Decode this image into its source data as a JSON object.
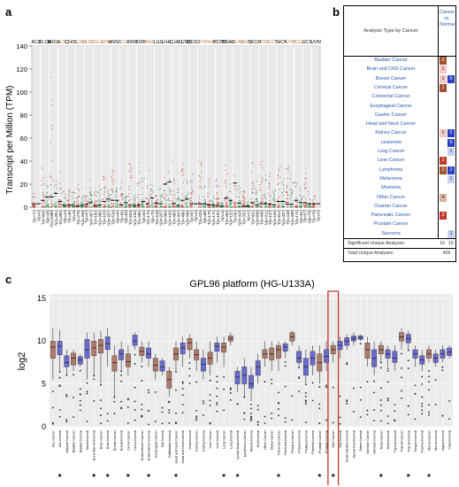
{
  "panel_labels": {
    "a": "a",
    "b": "b",
    "c": "c"
  },
  "panel_a": {
    "ylabel": "Transcript per Million (TPM)",
    "yticks": [
      "0",
      "20",
      "40",
      "60",
      "80",
      "100",
      "120",
      "140"
    ],
    "cancers": [
      "ACC",
      "BLCA",
      "BRCA",
      "CESC",
      "CHOL",
      "COAD",
      "DLBC",
      "ESCA",
      "GBM",
      "HNSC",
      "KICH",
      "KIRC",
      "KIRP",
      "LAML",
      "LGG",
      "LIHC",
      "LUAD",
      "LUSC",
      "MESO",
      "OV",
      "PAAD",
      "PCPG",
      "PRAD",
      "READ",
      "SARC",
      "SKCM",
      "STAD",
      "TGCT",
      "THCA",
      "THYM",
      "UCEC",
      "UCS",
      "UVM"
    ],
    "cancer_label_colors": [
      "#000",
      "#000",
      "#000",
      "#c08a5a",
      "#000",
      "#c08a5a",
      "#c08a5a",
      "#c08a5a",
      "#c08a5a",
      "#000",
      "#c08a5a",
      "#000",
      "#000",
      "#c08a5a",
      "#000",
      "#000",
      "#000",
      "#000",
      "#000",
      "#c08a5a",
      "#c08a5a",
      "#000",
      "#000",
      "#c08a5a",
      "#c08a5a",
      "#000",
      "#c08a5a",
      "#c08a5a",
      "#000",
      "#c08a5a",
      "#c08a5a",
      "#000",
      "#000"
    ],
    "xlabels": [
      "T(n=77)",
      "N(n=0)",
      "T(n=404)",
      "N(n=28)",
      "T(n=1085)",
      "N(n=291)",
      "T(n=306)",
      "N(n=13)",
      "T(n=36)",
      "N(n=9)",
      "T(n=275)",
      "N(n=349)",
      "T(n=47)",
      "N(n=337)",
      "T(n=182)",
      "N(n=286)",
      "T(n=163)",
      "N(n=207)",
      "T(n=519)",
      "N(n=44)",
      "T(n=66)",
      "N(n=53)",
      "T(n=523)",
      "N(n=100)",
      "T(n=286)",
      "N(n=60)",
      "T(n=173)",
      "N(n=70)",
      "T(n=518)",
      "N(n=207)",
      "T(n=369)",
      "N(n=160)",
      "T(n=483)",
      "N(n=347)",
      "T(n=486)",
      "N(n=338)",
      "T(n=87)",
      "N(n=0)",
      "T(n=426)",
      "N(n=88)",
      "T(n=179)",
      "N(n=171)",
      "T(n=182)",
      "N(n=3)",
      "T(n=492)",
      "N(n=152)",
      "T(n=92)",
      "N(n=318)",
      "T(n=262)",
      "N(n=2)",
      "T(n=461)",
      "N(n=558)",
      "T(n=408)",
      "N(n=211)",
      "T(n=137)",
      "N(n=165)",
      "T(n=512)",
      "N(n=337)",
      "T(n=118)",
      "N(n=339)",
      "T(n=174)",
      "N(n=91)",
      "T(n=57)",
      "N(n=78)",
      "T(n=79)",
      "N(n=0)"
    ],
    "ylim": [
      0,
      140
    ],
    "medians": [
      2.5,
      3.0,
      6.0,
      9.0,
      9.0,
      12.0,
      5.0,
      1.5,
      2.0,
      1.5,
      1.0,
      1.5,
      2.5,
      4.0,
      1.5,
      2.0,
      5.0,
      7.0,
      6.0,
      6.0,
      2.0,
      4.0,
      2.0,
      1.5,
      2.0,
      5.0,
      3.0,
      8.0,
      3.5,
      3.0,
      20.0,
      22.0,
      3.0,
      1.5,
      6.0,
      7.0,
      3.0,
      3.0,
      3.0,
      3.0,
      2.0,
      2.0,
      1.5,
      1.0,
      8.0,
      6.0,
      21.0,
      3.5,
      1.0,
      1.0,
      4.0,
      2.0,
      3.0,
      3.0,
      2.5,
      2.0,
      5.0,
      5.0,
      2.5,
      2.5,
      6.0,
      4.0,
      4.0,
      3.0,
      3.0,
      3.0
    ],
    "maxes": [
      12,
      0,
      38,
      20,
      118,
      30,
      35,
      15,
      16,
      14,
      20,
      12,
      22,
      25,
      14,
      20,
      30,
      16,
      35,
      18,
      28,
      10,
      40,
      12,
      48,
      30,
      38,
      20,
      10,
      18,
      30,
      32,
      45,
      18,
      38,
      26,
      30,
      0,
      40,
      20,
      28,
      15,
      25,
      5,
      40,
      22,
      38,
      20,
      15,
      5,
      40,
      24,
      42,
      30,
      30,
      15,
      36,
      26,
      36,
      30,
      22,
      18,
      30,
      14,
      10,
      0
    ],
    "tumor_color": "#c0392b",
    "normal_color": "#2e8b57"
  },
  "panel_b": {
    "header_left": "Analysis Type by Cancer",
    "header_right": [
      "Cancer",
      "vs.",
      "Normal"
    ],
    "rows": [
      {
        "name": "Bladder Cancer",
        "up": "2",
        "down": ""
      },
      {
        "name": "Brain and CNS Cancer",
        "up": "1",
        "down": ""
      },
      {
        "name": "Breast Cancer",
        "up": "1",
        "down": "5"
      },
      {
        "name": "Cervical Cancer",
        "up": "1",
        "down": ""
      },
      {
        "name": "Colorectal Cancer",
        "up": "",
        "down": ""
      },
      {
        "name": "Esophageal Cancer",
        "up": "",
        "down": ""
      },
      {
        "name": "Gastric Cancer",
        "up": "",
        "down": ""
      },
      {
        "name": "Head and Neck Cancer",
        "up": "",
        "down": ""
      },
      {
        "name": "Kidney Cancer",
        "up": "1",
        "down": "2"
      },
      {
        "name": "Leukemia",
        "up": "",
        "down": "5"
      },
      {
        "name": "Lung Cancer",
        "up": "",
        "down": "1"
      },
      {
        "name": "Liver Cancer",
        "up": "2",
        "down": ""
      },
      {
        "name": "Lymphoma",
        "up": "2",
        "down": "2"
      },
      {
        "name": "Melanoma",
        "up": "",
        "down": "1"
      },
      {
        "name": "Myeloma",
        "up": "",
        "down": ""
      },
      {
        "name": "Other Cancer",
        "up": "4",
        "down": ""
      },
      {
        "name": "Ovarian Cancer",
        "up": "",
        "down": ""
      },
      {
        "name": "Pancreatic Cancer",
        "up": "3",
        "down": ""
      },
      {
        "name": "Prostate Cancer",
        "up": "",
        "down": ""
      },
      {
        "name": "Sarcoma",
        "up": "",
        "down": "1"
      }
    ],
    "up_colors": {
      "1": "#f4c7c3",
      "2": "#a0522d",
      "3": "#c0392b",
      "4": "#d8b4a0"
    },
    "down_colors": {
      "1": "#c6d3f0",
      "2": "#2a3fc0",
      "5": "#2a3fc0"
    },
    "special_up_colors": {
      "Liver Cancer": "#c0392b",
      "Cervical Cancer": "#a0522d"
    },
    "significant_label": "Significant Unique Analyses",
    "significant_up": "16",
    "significant_down": "15",
    "total_label": "Total Unique Analyses",
    "total": "405"
  },
  "panel_c": {
    "title": "GPL96 platform (HG-U133A)",
    "ylabel": "log2",
    "yticks": [
      "0",
      "5",
      "10",
      "15"
    ],
    "ylim": [
      0,
      15.5
    ],
    "groups": [
      {
        "label": "ALL Cancer",
        "median": 9.3,
        "q1": 8.0,
        "q3": 10.0,
        "lo": 5.5,
        "hi": 11.5,
        "color": "#b07a6a"
      },
      {
        "label": "ALL Normal",
        "median": 9.4,
        "q1": 8.4,
        "q3": 10.0,
        "lo": 6.5,
        "hi": 11.3,
        "color": "#6a6ad0"
      },
      {
        "label": "Adipose Normal",
        "median": 7.5,
        "q1": 7.0,
        "q3": 8.3,
        "lo": 6.0,
        "hi": 9.0,
        "color": "#6a6ad0"
      },
      {
        "label": "Bladder Cancer",
        "median": 8.0,
        "q1": 7.2,
        "q3": 8.6,
        "lo": 6.5,
        "hi": 9.0,
        "color": "#b07a6a"
      },
      {
        "label": "Bladder Normal",
        "median": 7.8,
        "q1": 7.3,
        "q3": 8.2,
        "lo": 7.0,
        "hi": 8.5,
        "color": "#6a6ad0"
      },
      {
        "label": "Blood Normal",
        "median": 9.0,
        "q1": 8.0,
        "q3": 10.2,
        "lo": 5.5,
        "hi": 11.0,
        "color": "#6a6ad0"
      },
      {
        "label": "Bone Marrow Normal",
        "median": 9.2,
        "q1": 8.3,
        "q3": 10.0,
        "lo": 6.0,
        "hi": 11.0,
        "color": "#b07a6a"
      },
      {
        "label": "Brain Cancer",
        "median": 9.5,
        "q1": 8.6,
        "q3": 10.2,
        "lo": 5.0,
        "hi": 11.2,
        "color": "#b07a6a"
      },
      {
        "label": "Brain Normal",
        "median": 9.7,
        "q1": 9.0,
        "q3": 10.5,
        "lo": 7.0,
        "hi": 11.5,
        "color": "#6a6ad0"
      },
      {
        "label": "Breast Cancer",
        "median": 7.5,
        "q1": 6.5,
        "q3": 8.3,
        "lo": 3.5,
        "hi": 9.5,
        "color": "#b07a6a"
      },
      {
        "label": "Breast Normal",
        "median": 8.5,
        "q1": 7.8,
        "q3": 9.0,
        "lo": 6.5,
        "hi": 10.0,
        "color": "#6a6ad0"
      },
      {
        "label": "Cervix Cancer",
        "median": 7.6,
        "q1": 7.0,
        "q3": 8.5,
        "lo": 6.0,
        "hi": 9.5,
        "color": "#b07a6a"
      },
      {
        "label": "Cervix Normal",
        "median": 10.0,
        "q1": 9.5,
        "q3": 10.7,
        "lo": 9.0,
        "hi": 11.0,
        "color": "#6a6ad0"
      },
      {
        "label": "Endometrium Cancer",
        "median": 8.8,
        "q1": 8.3,
        "q3": 9.3,
        "lo": 7.5,
        "hi": 10.0,
        "color": "#b07a6a"
      },
      {
        "label": "Endometrium Normal",
        "median": 8.5,
        "q1": 8.0,
        "q3": 9.2,
        "lo": 7.0,
        "hi": 10.0,
        "color": "#6a6ad0"
      },
      {
        "label": "Esophagus Cancer",
        "median": 7.2,
        "q1": 6.5,
        "q3": 8.0,
        "lo": 5.5,
        "hi": 8.5,
        "color": "#b07a6a"
      },
      {
        "label": "Eye Normal",
        "median": 7.0,
        "q1": 6.5,
        "q3": 7.7,
        "lo": 6.0,
        "hi": 8.0,
        "color": "#6a6ad0"
      },
      {
        "label": "Gallbladder Normal",
        "median": 5.5,
        "q1": 4.5,
        "q3": 6.5,
        "lo": 3.5,
        "hi": 7.0,
        "color": "#b07a6a"
      },
      {
        "label": "Head and Neck Cancer",
        "median": 8.5,
        "q1": 7.8,
        "q3": 9.2,
        "lo": 6.5,
        "hi": 10.0,
        "color": "#b07a6a"
      },
      {
        "label": "Head and Neck Normal",
        "median": 9.2,
        "q1": 8.5,
        "q3": 9.8,
        "lo": 7.0,
        "hi": 10.5,
        "color": "#6a6ad0"
      },
      {
        "label": "Heart Normal",
        "median": 9.8,
        "q1": 9.0,
        "q3": 10.3,
        "lo": 8.0,
        "hi": 10.8,
        "color": "#b07a6a"
      },
      {
        "label": "Kidney Cancer",
        "median": 8.4,
        "q1": 7.8,
        "q3": 9.0,
        "lo": 6.5,
        "hi": 10.0,
        "color": "#b07a6a"
      },
      {
        "label": "Kidney Normal",
        "median": 7.3,
        "q1": 6.5,
        "q3": 8.0,
        "lo": 5.5,
        "hi": 9.0,
        "color": "#6a6ad0"
      },
      {
        "label": "Liver Cancer",
        "median": 8.0,
        "q1": 7.3,
        "q3": 8.7,
        "lo": 6.0,
        "hi": 10.0,
        "color": "#b07a6a"
      },
      {
        "label": "Liver Normal",
        "median": 9.4,
        "q1": 8.8,
        "q3": 9.8,
        "lo": 7.5,
        "hi": 10.5,
        "color": "#6a6ad0"
      },
      {
        "label": "Lung Cancer",
        "median": 9.3,
        "q1": 8.7,
        "q3": 9.8,
        "lo": 7.0,
        "hi": 10.5,
        "color": "#b07a6a"
      },
      {
        "label": "Lung Normal",
        "median": 10.3,
        "q1": 10.0,
        "q3": 10.6,
        "lo": 9.5,
        "hi": 11.0,
        "color": "#b07a6a"
      },
      {
        "label": "Lymph Node Normal",
        "median": 5.8,
        "q1": 5.0,
        "q3": 6.5,
        "lo": 4.0,
        "hi": 7.0,
        "color": "#6a6ad0"
      },
      {
        "label": "Lymphoma Cancer",
        "median": 6.0,
        "q1": 5.0,
        "q3": 7.0,
        "lo": 3.5,
        "hi": 8.0,
        "color": "#6a6ad0"
      },
      {
        "label": "Muscle Normal",
        "median": 5.0,
        "q1": 4.5,
        "q3": 6.0,
        "lo": 3.0,
        "hi": 7.0,
        "color": "#6a6ad0"
      },
      {
        "label": "Oral Normal",
        "median": 7.0,
        "q1": 6.0,
        "q3": 7.7,
        "lo": 5.0,
        "hi": 8.5,
        "color": "#6a6ad0"
      },
      {
        "label": "Other Cancer",
        "median": 8.5,
        "q1": 8.0,
        "q3": 9.0,
        "lo": 7.0,
        "hi": 10.0,
        "color": "#b07a6a"
      },
      {
        "label": "Ovary Cancer",
        "median": 8.5,
        "q1": 7.8,
        "q3": 9.2,
        "lo": 6.5,
        "hi": 10.0,
        "color": "#b07a6a"
      },
      {
        "label": "Pancreas Cancer",
        "median": 9.0,
        "q1": 8.0,
        "q3": 9.5,
        "lo": 6.5,
        "hi": 10.0,
        "color": "#b07a6a"
      },
      {
        "label": "Pancreas Normal",
        "median": 9.3,
        "q1": 8.8,
        "q3": 9.7,
        "lo": 8.0,
        "hi": 10.0,
        "color": "#6a6ad0"
      },
      {
        "label": "Pharynx Cancer",
        "median": 10.5,
        "q1": 10.0,
        "q3": 11.0,
        "lo": 9.5,
        "hi": 11.2,
        "color": "#b07a6a"
      },
      {
        "label": "Pharynx Normal",
        "median": 8.0,
        "q1": 7.5,
        "q3": 8.8,
        "lo": 7.0,
        "hi": 9.5,
        "color": "#6a6ad0"
      },
      {
        "label": "Pituitary Normal",
        "median": 7.0,
        "q1": 6.0,
        "q3": 8.0,
        "lo": 5.0,
        "hi": 9.0,
        "color": "#6a6ad0"
      },
      {
        "label": "Placenta Normal",
        "median": 8.0,
        "q1": 7.2,
        "q3": 8.8,
        "lo": 6.0,
        "hi": 9.5,
        "color": "#6a6ad0"
      },
      {
        "label": "Prostate Cancer",
        "median": 7.5,
        "q1": 6.5,
        "q3": 8.5,
        "lo": 5.0,
        "hi": 9.5,
        "color": "#b07a6a"
      },
      {
        "label": "Prostate Normal",
        "median": 8.2,
        "q1": 7.5,
        "q3": 9.0,
        "lo": 6.5,
        "hi": 10.0,
        "color": "#6a6ad0"
      },
      {
        "label": "Skin Cancer",
        "median": 9.0,
        "q1": 8.5,
        "q3": 9.5,
        "lo": 7.5,
        "hi": 10.0,
        "color": "#b07a6a"
      },
      {
        "label": "Skin Normal",
        "median": 9.5,
        "q1": 9.0,
        "q3": 10.0,
        "lo": 8.0,
        "hi": 10.5,
        "color": "#6a6ad0"
      },
      {
        "label": "Small Intestine Normal",
        "median": 10.0,
        "q1": 9.5,
        "q3": 10.4,
        "lo": 9.0,
        "hi": 10.8,
        "color": "#6a6ad0"
      },
      {
        "label": "Spinal Cord Normal",
        "median": 10.3,
        "q1": 10.0,
        "q3": 10.6,
        "lo": 9.5,
        "hi": 11.0,
        "color": "#6a6ad0"
      },
      {
        "label": "Spleen Normal",
        "median": 10.4,
        "q1": 10.2,
        "q3": 10.6,
        "lo": 10.0,
        "hi": 10.8,
        "color": "#6a6ad0"
      },
      {
        "label": "Stomach Cancer",
        "median": 9.0,
        "q1": 8.0,
        "q3": 9.8,
        "lo": 7.0,
        "hi": 10.5,
        "color": "#b07a6a"
      },
      {
        "label": "Stomach Normal",
        "median": 8.0,
        "q1": 7.0,
        "q3": 9.0,
        "lo": 6.0,
        "hi": 10.0,
        "color": "#6a6ad0"
      },
      {
        "label": "Testis Cancer",
        "median": 9.0,
        "q1": 8.5,
        "q3": 9.5,
        "lo": 7.5,
        "hi": 10.0,
        "color": "#b07a6a"
      },
      {
        "label": "Testis Normal",
        "median": 8.5,
        "q1": 8.0,
        "q3": 9.0,
        "lo": 7.0,
        "hi": 9.5,
        "color": "#6a6ad0"
      },
      {
        "label": "Thymus Normal",
        "median": 8.0,
        "q1": 7.5,
        "q3": 8.8,
        "lo": 6.5,
        "hi": 9.5,
        "color": "#6a6ad0"
      },
      {
        "label": "Thyroid Cancer",
        "median": 10.5,
        "q1": 10.0,
        "q3": 11.0,
        "lo": 9.0,
        "hi": 11.5,
        "color": "#b07a6a"
      },
      {
        "label": "Thyroid Normal",
        "median": 10.3,
        "q1": 9.8,
        "q3": 10.8,
        "lo": 9.0,
        "hi": 11.2,
        "color": "#6a6ad0"
      },
      {
        "label": "Tongue Normal",
        "median": 8.5,
        "q1": 8.0,
        "q3": 9.0,
        "lo": 7.0,
        "hi": 9.5,
        "color": "#6a6ad0"
      },
      {
        "label": "Trachea Normal",
        "median": 7.8,
        "q1": 7.3,
        "q3": 8.3,
        "lo": 6.5,
        "hi": 9.0,
        "color": "#6a6ad0"
      },
      {
        "label": "Uterus Cancer",
        "median": 8.5,
        "q1": 8.0,
        "q3": 9.0,
        "lo": 7.5,
        "hi": 9.5,
        "color": "#b07a6a"
      },
      {
        "label": "Uterus Normal",
        "median": 8.0,
        "q1": 7.5,
        "q3": 8.5,
        "lo": 7.0,
        "hi": 9.0,
        "color": "#6a6ad0"
      },
      {
        "label": "Vagina Normal",
        "median": 8.5,
        "q1": 8.0,
        "q3": 9.0,
        "lo": 7.5,
        "hi": 9.5,
        "color": "#6a6ad0"
      },
      {
        "label": "Vulva Normal",
        "median": 8.7,
        "q1": 8.3,
        "q3": 9.2,
        "lo": 8.0,
        "hi": 9.5,
        "color": "#6a6ad0"
      }
    ],
    "star_indices": [
      1,
      6,
      8,
      11,
      14,
      18,
      25,
      27,
      33,
      39,
      41,
      48,
      52,
      55
    ],
    "highlight_index": 41,
    "star_symbol": "*"
  },
  "chart_data": [
    {
      "type": "scatter",
      "title": "",
      "ylabel": "Transcript per Million (TPM)",
      "ylim": [
        0,
        140
      ],
      "categories": [
        "ACC",
        "BLCA",
        "BRCA",
        "CESC",
        "CHOL",
        "COAD",
        "DLBC",
        "ESCA",
        "GBM",
        "HNSC",
        "KICH",
        "KIRC",
        "KIRP",
        "LAML",
        "LGG",
        "LIHC",
        "LUAD",
        "LUSC",
        "MESO",
        "OV",
        "PAAD",
        "PCPG",
        "PRAD",
        "READ",
        "SARC",
        "SKCM",
        "STAD",
        "TGCT",
        "THCA",
        "THYM",
        "UCEC",
        "UCS",
        "UVM"
      ],
      "series": [
        {
          "name": "T",
          "values": [
            2.5,
            6.0,
            9.0,
            5.0,
            2.0,
            1.0,
            2.5,
            1.5,
            5.0,
            6.0,
            2.0,
            2.0,
            5.0,
            3.0,
            3.5,
            20.0,
            3.0,
            6.0,
            3.0,
            3.0,
            2.0,
            1.5,
            8.0,
            21.0,
            1.0,
            4.0,
            3.0,
            2.5,
            5.0,
            2.5,
            6.0,
            4.0,
            3.0
          ]
        },
        {
          "name": "N",
          "values": [
            3.0,
            9.0,
            12.0,
            1.5,
            1.5,
            1.5,
            4.0,
            2.0,
            7.0,
            6.0,
            4.0,
            1.5,
            5.0,
            8.0,
            3.0,
            22.0,
            1.5,
            7.0,
            3.0,
            3.0,
            2.0,
            1.0,
            6.0,
            3.5,
            1.0,
            2.0,
            3.0,
            2.0,
            5.0,
            2.5,
            4.0,
            3.0,
            3.0
          ]
        }
      ]
    },
    {
      "type": "box",
      "title": "GPL96 platform (HG-U133A)",
      "ylabel": "log2",
      "ylim": [
        0,
        15.5
      ]
    }
  ]
}
